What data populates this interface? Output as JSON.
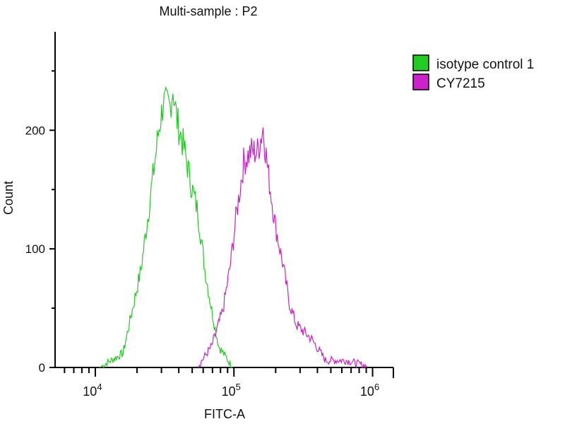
{
  "chart_data": {
    "type": "line",
    "title": "Multi-sample : P2",
    "xlabel": "FITC-A",
    "ylabel": "Count",
    "x_scale": "log10",
    "xlim_log10": [
      3.71,
      6.15
    ],
    "ylim": [
      0,
      283
    ],
    "x_ticks": [
      {
        "base": "10",
        "exp": "4",
        "value": 4
      },
      {
        "base": "10",
        "exp": "5",
        "value": 5
      },
      {
        "base": "10",
        "exp": "6",
        "value": 6
      }
    ],
    "y_ticks": [
      {
        "label": "0",
        "value": 0
      },
      {
        "label": "100",
        "value": 100
      },
      {
        "label": "200",
        "value": 200
      }
    ],
    "legend_position": "right-top",
    "series": [
      {
        "name": "isotype control 1",
        "color": "#22cc22",
        "x_log10": [
          4.03,
          4.2,
          4.33,
          4.39,
          4.46,
          4.49,
          4.54,
          4.56,
          4.59,
          4.64,
          4.69,
          4.74,
          4.79,
          4.84,
          4.89,
          4.99
        ],
        "y": [
          0,
          12,
          83,
          137,
          202,
          223,
          220,
          235,
          208,
          185,
          155,
          131,
          83,
          48,
          18,
          0
        ]
      },
      {
        "name": "CY7215",
        "color": "#cc22cc",
        "x_log10": [
          4.74,
          4.84,
          4.92,
          4.97,
          5.02,
          5.07,
          5.12,
          5.17,
          5.21,
          5.25,
          5.3,
          5.35,
          5.4,
          5.45,
          5.56,
          5.66,
          5.81,
          5.96
        ],
        "y": [
          1,
          18,
          48,
          83,
          131,
          173,
          182,
          182,
          202,
          161,
          119,
          89,
          54,
          36,
          24,
          6,
          6,
          1
        ]
      }
    ]
  }
}
